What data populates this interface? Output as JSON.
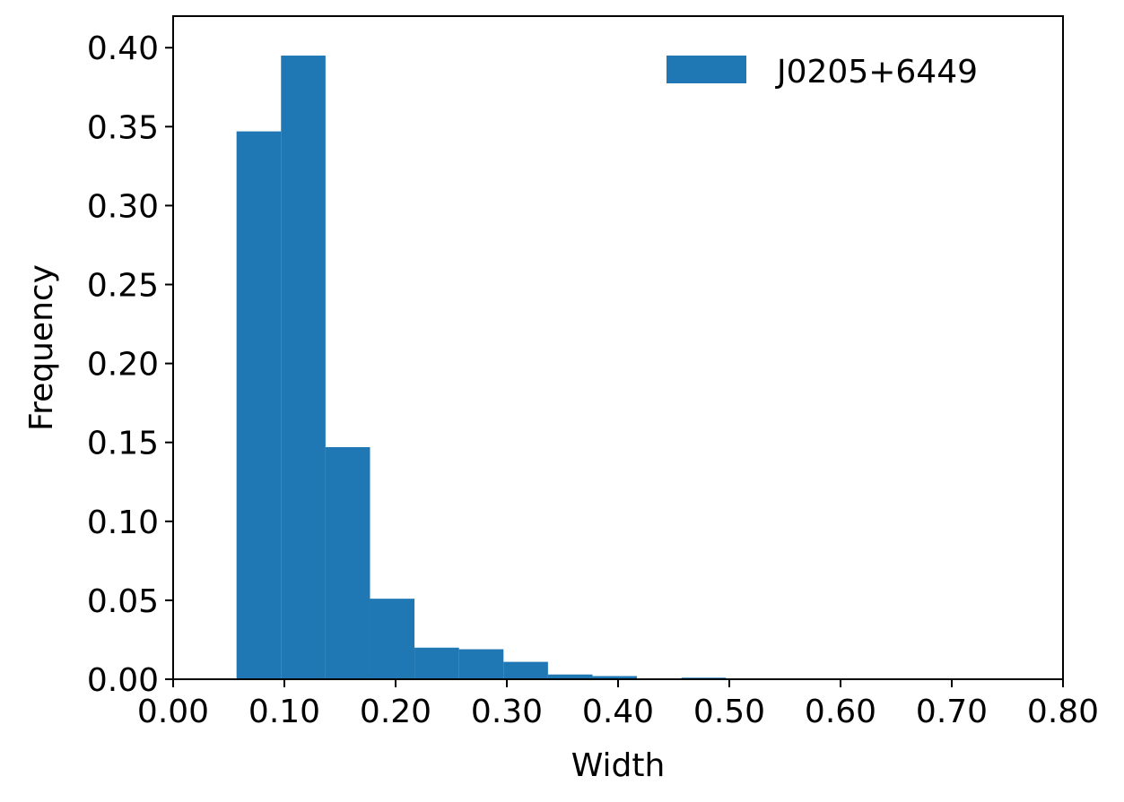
{
  "chart_data": {
    "type": "bar",
    "title": "",
    "xlabel": "Width",
    "ylabel": "Frequency",
    "xlim": [
      0.0,
      0.8
    ],
    "ylim": [
      0.0,
      0.42
    ],
    "grid": false,
    "legend_position": "top-right",
    "series": [
      {
        "name": "J0205+6449",
        "color": "#1f77b4",
        "bins": [
          {
            "x0": 0.057,
            "x1": 0.097,
            "value": 0.347
          },
          {
            "x0": 0.097,
            "x1": 0.137,
            "value": 0.395
          },
          {
            "x0": 0.137,
            "x1": 0.177,
            "value": 0.147
          },
          {
            "x0": 0.177,
            "x1": 0.217,
            "value": 0.051
          },
          {
            "x0": 0.217,
            "x1": 0.257,
            "value": 0.02
          },
          {
            "x0": 0.257,
            "x1": 0.297,
            "value": 0.019
          },
          {
            "x0": 0.297,
            "x1": 0.337,
            "value": 0.011
          },
          {
            "x0": 0.337,
            "x1": 0.377,
            "value": 0.003
          },
          {
            "x0": 0.377,
            "x1": 0.417,
            "value": 0.002
          },
          {
            "x0": 0.417,
            "x1": 0.457,
            "value": 0.0
          },
          {
            "x0": 0.457,
            "x1": 0.497,
            "value": 0.001
          },
          {
            "x0": 0.497,
            "x1": 0.537,
            "value": 0.0
          },
          {
            "x0": 0.537,
            "x1": 0.577,
            "value": 0.0
          },
          {
            "x0": 0.577,
            "x1": 0.617,
            "value": 0.0
          },
          {
            "x0": 0.617,
            "x1": 0.657,
            "value": 0.0
          },
          {
            "x0": 0.657,
            "x1": 0.697,
            "value": 0.0005
          }
        ]
      }
    ],
    "x_ticks": [
      0.0,
      0.1,
      0.2,
      0.3,
      0.4,
      0.5,
      0.6,
      0.7,
      0.8
    ],
    "x_tick_labels": [
      "0.00",
      "0.10",
      "0.20",
      "0.30",
      "0.40",
      "0.50",
      "0.60",
      "0.70",
      "0.80"
    ],
    "y_ticks": [
      0.0,
      0.05,
      0.1,
      0.15,
      0.2,
      0.25,
      0.3,
      0.35,
      0.4
    ],
    "y_tick_labels": [
      "0.00",
      "0.05",
      "0.10",
      "0.15",
      "0.20",
      "0.25",
      "0.30",
      "0.35",
      "0.40"
    ]
  }
}
